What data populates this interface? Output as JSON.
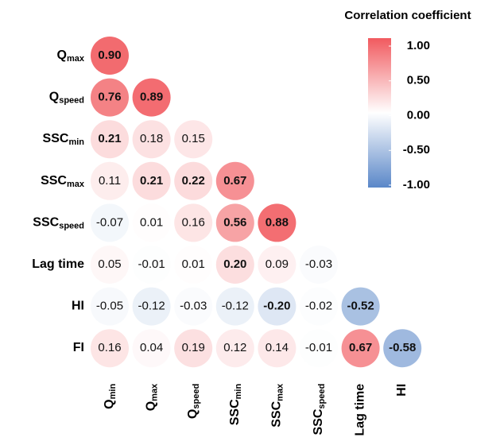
{
  "chart_data": {
    "type": "correlogram",
    "legend_title": "Correlation coefficient",
    "rows": [
      {
        "main": "Q",
        "sub": "max"
      },
      {
        "main": "Q",
        "sub": "speed"
      },
      {
        "main": "SSC",
        "sub": "min"
      },
      {
        "main": "SSC",
        "sub": "max"
      },
      {
        "main": "SSC",
        "sub": "speed"
      },
      {
        "main": "Lag time"
      },
      {
        "main": "HI"
      },
      {
        "main": "FI"
      }
    ],
    "columns": [
      {
        "main": "Q",
        "sub": "min"
      },
      {
        "main": "Q",
        "sub": "max"
      },
      {
        "main": "Q",
        "sub": "speed"
      },
      {
        "main": "SSC",
        "sub": "min"
      },
      {
        "main": "SSC",
        "sub": "max"
      },
      {
        "main": "SSC",
        "sub": "speed"
      },
      {
        "main": "Lag time"
      },
      {
        "main": "HI"
      }
    ],
    "values": [
      [
        0.9
      ],
      [
        0.76,
        0.89
      ],
      [
        0.21,
        0.18,
        0.15
      ],
      [
        0.11,
        0.21,
        0.22,
        0.67
      ],
      [
        -0.07,
        0.01,
        0.16,
        0.56,
        0.88
      ],
      [
        0.05,
        -0.01,
        0.01,
        0.2,
        0.09,
        -0.03
      ],
      [
        -0.05,
        -0.12,
        -0.03,
        -0.12,
        -0.2,
        -0.02,
        -0.52
      ],
      [
        0.16,
        0.04,
        0.19,
        0.12,
        0.14,
        -0.01,
        0.67,
        -0.58
      ]
    ],
    "value_labels": [
      [
        "0.90"
      ],
      [
        "0.76",
        "0.89"
      ],
      [
        "0.21",
        "0.18",
        "0.15"
      ],
      [
        "0.11",
        "0.21",
        "0.22",
        "0.67"
      ],
      [
        "-0.07",
        "0.01",
        "0.16",
        "0.56",
        "0.88"
      ],
      [
        "0.05",
        "-0.01",
        "0.01",
        "0.20",
        "0.09",
        "-0.03"
      ],
      [
        "-0.05",
        "-0.12",
        "-0.03",
        "-0.12",
        "-0.20",
        "-0.02",
        "-0.52"
      ],
      [
        "0.16",
        "0.04",
        "0.19",
        "0.12",
        "0.14",
        "-0.01",
        "0.67",
        "-0.58"
      ]
    ],
    "bold": [
      [
        true
      ],
      [
        true,
        true
      ],
      [
        true,
        false,
        false
      ],
      [
        false,
        true,
        true,
        true
      ],
      [
        false,
        false,
        false,
        true,
        true
      ],
      [
        false,
        false,
        false,
        true,
        false,
        false
      ],
      [
        false,
        false,
        false,
        false,
        true,
        false,
        true
      ],
      [
        false,
        false,
        false,
        false,
        false,
        false,
        true,
        true
      ]
    ],
    "clim": [
      -1,
      1
    ],
    "cticks": [
      {
        "value": 1,
        "label": "1.00"
      },
      {
        "value": 0.5,
        "label": "0.50"
      },
      {
        "value": 0,
        "label": "0.00"
      },
      {
        "value": -0.5,
        "label": "-0.50"
      },
      {
        "value": -1,
        "label": "-1.00"
      }
    ],
    "colors": {
      "low": "#5a87c8",
      "mid": "#ffffff",
      "high": "#f15a5f"
    }
  }
}
